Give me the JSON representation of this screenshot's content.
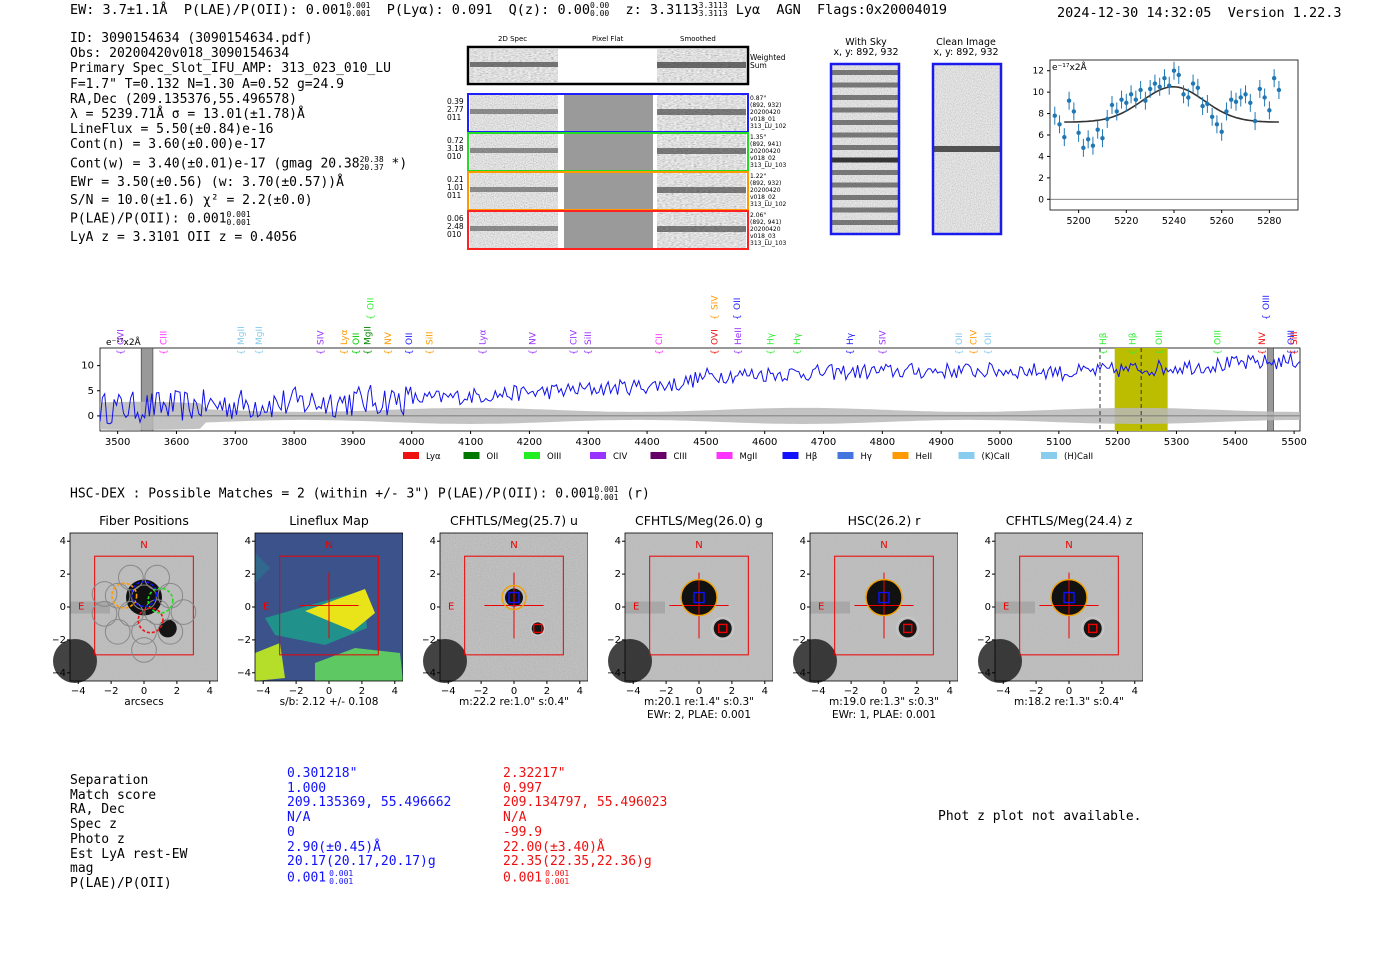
{
  "header": {
    "ew": "EW: 3.7±1.1Å",
    "plae_label": "P(LAE)/P(OII): 0.001",
    "plae_sup": "0.001",
    "plae_sub": "0.001",
    "plya": "P(Lyα): 0.091",
    "qz_label": "Q(z): 0.00",
    "qz_sup": "0.00",
    "qz_sub": "0.00",
    "z_label": "z: 3.3113",
    "z_sup": "3.3113",
    "z_sub": "3.3113",
    "line": "Lyα",
    "agn": "AGN",
    "flags": "Flags:0x20004019",
    "datetime": "2024-12-30 14:32:05",
    "version": "Version 1.22.3"
  },
  "info": {
    "id": "ID: 3090154634 (3090154634.pdf)",
    "obs": "Obs: 20200420v018_3090154634",
    "slot": "Primary Spec_Slot_IFU_AMP: 313_023_010_LU",
    "params": "F=1.7\"  T=0.132  N=1.30  A=0.52  g=24.9",
    "radec": "RA,Dec (209.135376,55.496578)",
    "lambda": "λ = 5239.71Å  σ = 13.01(±1.78)Å",
    "lineflux": "LineFlux = 5.50(±0.84)e-16",
    "contn": "Cont(n) = 3.60(±0.00)e-17",
    "contw_main": "Cont(w) = 3.40(±0.01)e-17 (gmag 20.38",
    "contw_sup": "20.38",
    "contw_sub": "20.37",
    "contw_end": "*)",
    "ewr": "EWr = 3.50(±0.56) (w: 3.70(±0.57))Å",
    "sn": "S/N = 10.0(±1.6)  χ² = 2.2(±0.0)",
    "plae_main": "P(LAE)/P(OII): 0.001",
    "plae_sup": "0.001",
    "plae_sub": "0.001",
    "lyaz": "LyA z = 3.3101  OII z = 0.4056"
  },
  "cutouts": {
    "col_2d": "2D Spec",
    "col_flat": "Pixel Flat",
    "col_smooth": "Smoothed",
    "weighted": "Weighted Sum",
    "rows": [
      {
        "w1": "0.39",
        "w2": "2.77",
        "w3": "011",
        "d1": "0.87\"",
        "d2": "(892, 932)",
        "d3": "20200420",
        "d4": "v018_01",
        "d5": "313_LU_102",
        "color": "#2020ff"
      },
      {
        "w1": "0.72",
        "w2": "3.18",
        "w3": "010",
        "d1": "1.35\"",
        "d2": "(892, 941)",
        "d3": "20200420",
        "d4": "v018_02",
        "d5": "313_LU_103",
        "color": "#22dd22"
      },
      {
        "w1": "0.21",
        "w2": "1.01",
        "w3": "011",
        "d1": "1.22\"",
        "d2": "(892, 932)",
        "d3": "20200420",
        "d4": "v018_02",
        "d5": "313_LU_102",
        "color": "#ff9900"
      },
      {
        "w1": "0.06",
        "w2": "2.48",
        "w3": "010",
        "d1": "2.06\"",
        "d2": "(892, 941)",
        "d3": "20200420",
        "d4": "v018_03",
        "d5": "313_LU_103",
        "color": "#ff2020"
      }
    ]
  },
  "sky": {
    "with_sky": "With Sky",
    "with_sky_xy": "x, y: 892, 932",
    "clean": "Clean Image",
    "clean_xy": "x, y: 892, 932"
  },
  "zoom_plot": {
    "unit": "e⁻¹⁷x2Å",
    "xticks": [
      "5200",
      "5220",
      "5240",
      "5260",
      "5280"
    ],
    "yticks": [
      "0",
      "2",
      "4",
      "6",
      "8",
      "10",
      "12"
    ],
    "xlim": [
      5188,
      5292
    ],
    "ylim": [
      -1,
      13
    ],
    "points": [
      [
        5190,
        7.8
      ],
      [
        5192,
        7.0
      ],
      [
        5194,
        5.8
      ],
      [
        5196,
        9.2
      ],
      [
        5198,
        8.2
      ],
      [
        5200,
        6.2
      ],
      [
        5202,
        4.8
      ],
      [
        5204,
        5.6
      ],
      [
        5206,
        5.0
      ],
      [
        5208,
        6.5
      ],
      [
        5210,
        5.7
      ],
      [
        5212,
        7.5
      ],
      [
        5214,
        8.8
      ],
      [
        5216,
        8.2
      ],
      [
        5218,
        9.3
      ],
      [
        5220,
        9.0
      ],
      [
        5222,
        9.8
      ],
      [
        5224,
        9.3
      ],
      [
        5226,
        10.2
      ],
      [
        5228,
        9.2
      ],
      [
        5230,
        10.3
      ],
      [
        5232,
        10.8
      ],
      [
        5234,
        10.5
      ],
      [
        5236,
        11.3
      ],
      [
        5238,
        10.6
      ],
      [
        5240,
        12.0
      ],
      [
        5242,
        11.6
      ],
      [
        5244,
        9.8
      ],
      [
        5246,
        9.5
      ],
      [
        5248,
        10.8
      ],
      [
        5250,
        10.4
      ],
      [
        5252,
        8.7
      ],
      [
        5254,
        8.9
      ],
      [
        5256,
        7.7
      ],
      [
        5258,
        7.0
      ],
      [
        5260,
        6.3
      ],
      [
        5262,
        8.2
      ],
      [
        5264,
        9.3
      ],
      [
        5266,
        9.1
      ],
      [
        5268,
        9.5
      ],
      [
        5270,
        9.8
      ],
      [
        5272,
        9.0
      ],
      [
        5274,
        7.3
      ],
      [
        5276,
        10.3
      ],
      [
        5278,
        9.5
      ],
      [
        5280,
        8.3
      ],
      [
        5282,
        11.3
      ],
      [
        5284,
        10.2
      ]
    ],
    "fit": {
      "continuum": 7.2,
      "amp": 3.3,
      "center": 5239.7,
      "sigma": 13.0
    }
  },
  "spectrum": {
    "unit": "e⁻¹⁷x2Å",
    "xticks": [
      "3500",
      "3600",
      "3700",
      "3800",
      "3900",
      "4000",
      "4100",
      "4200",
      "4300",
      "4400",
      "4500",
      "4600",
      "4700",
      "4800",
      "4900",
      "5000",
      "5100",
      "5200",
      "5300",
      "5400",
      "5500"
    ],
    "yticks": [
      "0",
      "5",
      "10"
    ],
    "xlim": [
      3470,
      5510
    ],
    "ylim": [
      -3,
      13.5
    ],
    "line_labels": [
      {
        "t": "OVI",
        "w": 3505,
        "c": "#9933ff",
        "row": 2
      },
      {
        "t": "CIII",
        "w": 3578,
        "c": "#ff33ff",
        "row": 2
      },
      {
        "t": "MgII",
        "w": 3710,
        "c": "#88ccee",
        "row": 2
      },
      {
        "t": "MgII",
        "w": 3740,
        "c": "#88ccee",
        "row": 2
      },
      {
        "t": "SIV",
        "w": 3845,
        "c": "#9933ff",
        "row": 2
      },
      {
        "t": "Lyα",
        "w": 3885,
        "c": "#ff9900",
        "row": 2
      },
      {
        "t": "OII",
        "w": 3905,
        "c": "#00cc00",
        "row": 2
      },
      {
        "t": "MgII",
        "w": 3925,
        "c": "#008800",
        "row": 2
      },
      {
        "t": "OII",
        "w": 3930,
        "c": "#33ee33",
        "row": 1
      },
      {
        "t": "NV",
        "w": 3960,
        "c": "#ff9900",
        "row": 2
      },
      {
        "t": "OII",
        "w": 3995,
        "c": "#2222ff",
        "row": 2
      },
      {
        "t": "SiII",
        "w": 4030,
        "c": "#ff9900",
        "row": 2
      },
      {
        "t": "Lyα",
        "w": 4120,
        "c": "#9933ff",
        "row": 2
      },
      {
        "t": "NV",
        "w": 4205,
        "c": "#9933ff",
        "row": 2
      },
      {
        "t": "CIV",
        "w": 4275,
        "c": "#9933ff",
        "row": 2
      },
      {
        "t": "SiII",
        "w": 4300,
        "c": "#9933ff",
        "row": 2
      },
      {
        "t": "CII",
        "w": 4420,
        "c": "#ff33ff",
        "row": 2
      },
      {
        "t": "OVI",
        "w": 4515,
        "c": "#ee1111",
        "row": 2
      },
      {
        "t": "SIV",
        "w": 4515,
        "c": "#ff9900",
        "row": 1
      },
      {
        "t": "OII",
        "w": 4553,
        "c": "#2222ff",
        "row": 1
      },
      {
        "t": "HeII",
        "w": 4555,
        "c": "#9933ff",
        "row": 2
      },
      {
        "t": "Hγ",
        "w": 4610,
        "c": "#33ee33",
        "row": 2
      },
      {
        "t": "Hγ",
        "w": 4655,
        "c": "#33ee33",
        "row": 2
      },
      {
        "t": "Hγ",
        "w": 4745,
        "c": "#2222ff",
        "row": 2
      },
      {
        "t": "SIV",
        "w": 4800,
        "c": "#9933ff",
        "row": 2
      },
      {
        "t": "OII",
        "w": 4930,
        "c": "#88ccee",
        "row": 2
      },
      {
        "t": "CIV",
        "w": 4955,
        "c": "#ff9900",
        "row": 2
      },
      {
        "t": "OII",
        "w": 4980,
        "c": "#88ccee",
        "row": 2
      },
      {
        "t": "Hβ",
        "w": 5175,
        "c": "#33ee33",
        "row": 2
      },
      {
        "t": "Hβ",
        "w": 5225,
        "c": "#33ee33",
        "row": 2
      },
      {
        "t": "OIII",
        "w": 5270,
        "c": "#33ee33",
        "row": 2
      },
      {
        "t": "OIII",
        "w": 5370,
        "c": "#33ee33",
        "row": 2
      },
      {
        "t": "NV",
        "w": 5445,
        "c": "#ee1111",
        "row": 2
      },
      {
        "t": "OIII",
        "w": 5452,
        "c": "#2222ff",
        "row": 1
      },
      {
        "t": "OIII",
        "w": 5495,
        "c": "#2222ff",
        "row": 2
      },
      {
        "t": "SiII",
        "w": 5540,
        "c": "#ee1111",
        "row": 2
      }
    ],
    "legend": [
      {
        "t": "Lyα",
        "c": "#ee1111"
      },
      {
        "t": "OII",
        "c": "#007700"
      },
      {
        "t": "OIII",
        "c": "#22ee22"
      },
      {
        "t": "CIV",
        "c": "#9933ff"
      },
      {
        "t": "CIII",
        "c": "#660066"
      },
      {
        "t": "MgII",
        "c": "#ff33ff"
      },
      {
        "t": "Hβ",
        "c": "#1111ff"
      },
      {
        "t": "Hγ",
        "c": "#4477dd"
      },
      {
        "t": "HeII",
        "c": "#ff9900"
      },
      {
        "t": "(K)CaII",
        "c": "#88ccee"
      },
      {
        "t": "(H)CaII",
        "c": "#88ccee"
      }
    ],
    "highlight": [
      5195,
      5285
    ],
    "masks": [
      [
        3540,
        3560
      ],
      [
        5455,
        5465
      ]
    ]
  },
  "hsc": {
    "text": "HSC-DEX : Possible Matches = 2 (within +/- 3\")  P(LAE)/P(OII): 0.001",
    "sup": "0.001",
    "sub": "0.001",
    "band": "(r)"
  },
  "stamps": {
    "north": "N",
    "east": "E",
    "ticks": [
      "−4",
      "−2",
      "0",
      "2",
      "4"
    ],
    "panels": [
      {
        "title": "Fiber Positions",
        "foot1": "arcsecs",
        "foot2": ""
      },
      {
        "title": "Lineflux Map",
        "foot1": "s/b: 2.12 +/- 0.108",
        "foot2": ""
      },
      {
        "title": "CFHTLS/Meg(25.7) u",
        "foot1": "m:22.2  re:1.0\"  s:0.4\"",
        "foot2": ""
      },
      {
        "title": "CFHTLS/Meg(26.0) g",
        "foot1": "m:20.1  re:1.4\"  s:0.3\"",
        "foot2": "EWr: 2, PLAE: 0.001"
      },
      {
        "title": "HSC(26.2) r",
        "foot1": "m:19.0  re:1.3\"  s:0.3\"",
        "foot2": "EWr: 1, PLAE: 0.001"
      },
      {
        "title": "CFHTLS/Meg(24.4) z",
        "foot1": "m:18.2  re:1.3\"  s:0.4\"",
        "foot2": ""
      }
    ]
  },
  "matches": {
    "labels": [
      "Separation",
      "Match score",
      "RA, Dec",
      "Spec z",
      "Photo z",
      "Est LyA rest-EW",
      "mag",
      "P(LAE)/P(OII)"
    ],
    "m1": [
      "0.301218\"",
      "1.000",
      "209.135369, 55.496662",
      "N/A",
      "0",
      "2.90(±0.45)Å",
      "20.17(20.17,20.17)g",
      "0.001"
    ],
    "m1_sup": "0.001",
    "m1_sub": "0.001",
    "m2": [
      "2.32217\"",
      "0.997",
      "209.134797, 55.496023",
      "N/A",
      "-99.9",
      "22.00(±3.40)Å",
      "22.35(22.35,22.36)g",
      "0.001"
    ],
    "m2_sup": "0.001",
    "m2_sub": "0.001",
    "photz_msg": "Phot z plot not available."
  }
}
